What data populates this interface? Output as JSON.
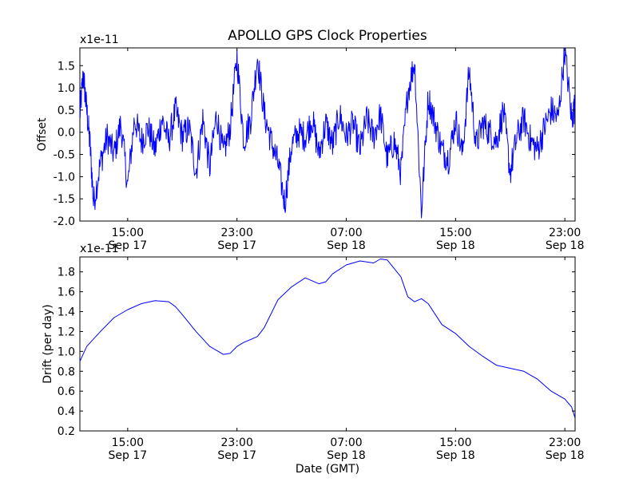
{
  "title": "APOLLO GPS Clock Properties",
  "colors": {
    "line": "#0000ff",
    "axis": "#000000",
    "background": "#ffffff"
  },
  "chart_data": [
    {
      "type": "line",
      "title": "APOLLO GPS Clock Properties",
      "ylabel": "Offset",
      "xlabel": "",
      "offset_text": "x1e-11",
      "xlim": [
        "2013-09-17 11:30",
        "2013-09-18 23:45"
      ],
      "ylim": [
        -2.0,
        1.9
      ],
      "y_scale": 1e-11,
      "yticks": [
        -2.0,
        -1.5,
        -1.0,
        -0.5,
        0.0,
        0.5,
        1.0,
        1.5
      ],
      "ytick_labels": [
        "-2.0",
        "-1.5",
        "-1.0",
        "-0.5",
        "0.0",
        "0.5",
        "1.0",
        "1.5"
      ],
      "xticks": [
        {
          "time": "2013-09-17 15:00",
          "hour": "15:00",
          "date": "Sep 17"
        },
        {
          "time": "2013-09-17 23:00",
          "hour": "23:00",
          "date": "Sep 17"
        },
        {
          "time": "2013-09-18 07:00",
          "hour": "07:00",
          "date": "Sep 18"
        },
        {
          "time": "2013-09-18 15:00",
          "hour": "15:00",
          "date": "Sep 18"
        },
        {
          "time": "2013-09-18 23:00",
          "hour": "23:00",
          "date": "Sep 18"
        }
      ],
      "grid": false,
      "series": [
        {
          "x": [
            "2013-09-17 11:30",
            "2013-09-17 11:45",
            "2013-09-17 12:00",
            "2013-09-17 12:15",
            "2013-09-17 12:30",
            "2013-09-17 13:00",
            "2013-09-17 13:30",
            "2013-09-17 14:00",
            "2013-09-17 14:30",
            "2013-09-17 15:00",
            "2013-09-17 15:30",
            "2013-09-17 16:00",
            "2013-09-17 16:30",
            "2013-09-17 17:00",
            "2013-09-17 17:30",
            "2013-09-17 18:00",
            "2013-09-17 18:30",
            "2013-09-17 19:00",
            "2013-09-17 19:30",
            "2013-09-17 20:00",
            "2013-09-17 20:30",
            "2013-09-17 21:00",
            "2013-09-17 21:30",
            "2013-09-17 22:00",
            "2013-09-17 22:30",
            "2013-09-17 23:00",
            "2013-09-17 23:30",
            "2013-09-18 00:00",
            "2013-09-18 00:30",
            "2013-09-18 01:00",
            "2013-09-18 01:30",
            "2013-09-18 02:00",
            "2013-09-18 02:30",
            "2013-09-18 03:00",
            "2013-09-18 03:30",
            "2013-09-18 04:00",
            "2013-09-18 04:30",
            "2013-09-18 05:00",
            "2013-09-18 05:30",
            "2013-09-18 06:00",
            "2013-09-18 06:30",
            "2013-09-18 07:00",
            "2013-09-18 07:30",
            "2013-09-18 08:00",
            "2013-09-18 08:30",
            "2013-09-18 09:00",
            "2013-09-18 09:30",
            "2013-09-18 10:00",
            "2013-09-18 10:30",
            "2013-09-18 11:00",
            "2013-09-18 11:30",
            "2013-09-18 12:00",
            "2013-09-18 12:30",
            "2013-09-18 13:00",
            "2013-09-18 13:30",
            "2013-09-18 14:00",
            "2013-09-18 14:30",
            "2013-09-18 15:00",
            "2013-09-18 15:30",
            "2013-09-18 16:00",
            "2013-09-18 16:30",
            "2013-09-18 17:00",
            "2013-09-18 17:30",
            "2013-09-18 18:00",
            "2013-09-18 18:30",
            "2013-09-18 19:00",
            "2013-09-18 19:30",
            "2013-09-18 20:00",
            "2013-09-18 20:30",
            "2013-09-18 21:00",
            "2013-09-18 21:30",
            "2013-09-18 22:00",
            "2013-09-18 22:30",
            "2013-09-18 23:00",
            "2013-09-18 23:30",
            "2013-09-18 23:45"
          ],
          "y": [
            0.4,
            1.3,
            0.5,
            -0.3,
            -1.6,
            -0.7,
            -0.1,
            -0.5,
            0.2,
            -1.2,
            0.3,
            -0.2,
            0.1,
            -0.4,
            0.3,
            -0.2,
            0.5,
            -0.1,
            0.1,
            -0.9,
            0.3,
            -0.8,
            0.4,
            -0.5,
            0.1,
            1.7,
            -0.2,
            0.3,
            1.7,
            0.4,
            -0.2,
            -0.7,
            -1.6,
            -0.3,
            0.0,
            -0.1,
            0.3,
            -0.5,
            0.2,
            -0.3,
            0.4,
            -0.1,
            0.2,
            -0.4,
            0.3,
            -0.1,
            0.4,
            -0.6,
            -0.2,
            -0.9,
            0.9,
            1.6,
            -1.8,
            0.8,
            0.2,
            -0.4,
            -0.6,
            0.3,
            -0.5,
            1.4,
            -0.3,
            0.2,
            0.0,
            -0.2,
            0.5,
            -0.9,
            -0.1,
            0.3,
            -0.2,
            -0.4,
            0.1,
            0.5,
            0.3,
            1.85,
            0.3,
            0.6
          ]
        }
      ]
    },
    {
      "type": "line",
      "title": "",
      "ylabel": "Drift (per day)",
      "xlabel": "Date (GMT)",
      "offset_text": "x1e-11",
      "xlim": [
        "2013-09-17 11:30",
        "2013-09-18 23:45"
      ],
      "ylim": [
        0.2,
        1.95
      ],
      "y_scale": 1e-11,
      "yticks": [
        0.2,
        0.4,
        0.6,
        0.8,
        1.0,
        1.2,
        1.4,
        1.6,
        1.8
      ],
      "ytick_labels": [
        "0.2",
        "0.4",
        "0.6",
        "0.8",
        "1.0",
        "1.2",
        "1.4",
        "1.6",
        "1.8"
      ],
      "xticks": [
        {
          "time": "2013-09-17 15:00",
          "hour": "15:00",
          "date": "Sep 17"
        },
        {
          "time": "2013-09-17 23:00",
          "hour": "23:00",
          "date": "Sep 17"
        },
        {
          "time": "2013-09-18 07:00",
          "hour": "07:00",
          "date": "Sep 18"
        },
        {
          "time": "2013-09-18 15:00",
          "hour": "15:00",
          "date": "Sep 18"
        },
        {
          "time": "2013-09-18 23:00",
          "hour": "23:00",
          "date": "Sep 18"
        }
      ],
      "grid": false,
      "series": [
        {
          "x": [
            "2013-09-17 11:30",
            "2013-09-17 12:00",
            "2013-09-17 13:00",
            "2013-09-17 14:00",
            "2013-09-17 15:00",
            "2013-09-17 16:00",
            "2013-09-17 17:00",
            "2013-09-17 18:00",
            "2013-09-17 18:30",
            "2013-09-17 19:00",
            "2013-09-17 20:00",
            "2013-09-17 21:00",
            "2013-09-17 22:00",
            "2013-09-17 22:30",
            "2013-09-17 23:00",
            "2013-09-17 23:30",
            "2013-09-18 00:00",
            "2013-09-18 00:30",
            "2013-09-18 01:00",
            "2013-09-18 02:00",
            "2013-09-18 03:00",
            "2013-09-18 04:00",
            "2013-09-18 05:00",
            "2013-09-18 05:30",
            "2013-09-18 06:00",
            "2013-09-18 07:00",
            "2013-09-18 08:00",
            "2013-09-18 09:00",
            "2013-09-18 09:30",
            "2013-09-18 10:00",
            "2013-09-18 11:00",
            "2013-09-18 11:30",
            "2013-09-18 12:00",
            "2013-09-18 12:30",
            "2013-09-18 13:00",
            "2013-09-18 14:00",
            "2013-09-18 15:00",
            "2013-09-18 16:00",
            "2013-09-18 17:00",
            "2013-09-18 18:00",
            "2013-09-18 19:00",
            "2013-09-18 20:00",
            "2013-09-18 21:00",
            "2013-09-18 22:00",
            "2013-09-18 23:00",
            "2013-09-18 23:30",
            "2013-09-18 23:45"
          ],
          "y": [
            0.9,
            1.05,
            1.2,
            1.34,
            1.42,
            1.48,
            1.51,
            1.5,
            1.45,
            1.37,
            1.2,
            1.05,
            0.97,
            0.98,
            1.05,
            1.09,
            1.12,
            1.15,
            1.24,
            1.52,
            1.65,
            1.74,
            1.68,
            1.7,
            1.78,
            1.87,
            1.91,
            1.89,
            1.93,
            1.92,
            1.75,
            1.55,
            1.5,
            1.53,
            1.48,
            1.27,
            1.18,
            1.05,
            0.95,
            0.86,
            0.83,
            0.8,
            0.72,
            0.6,
            0.52,
            0.44,
            0.33
          ]
        }
      ]
    }
  ]
}
